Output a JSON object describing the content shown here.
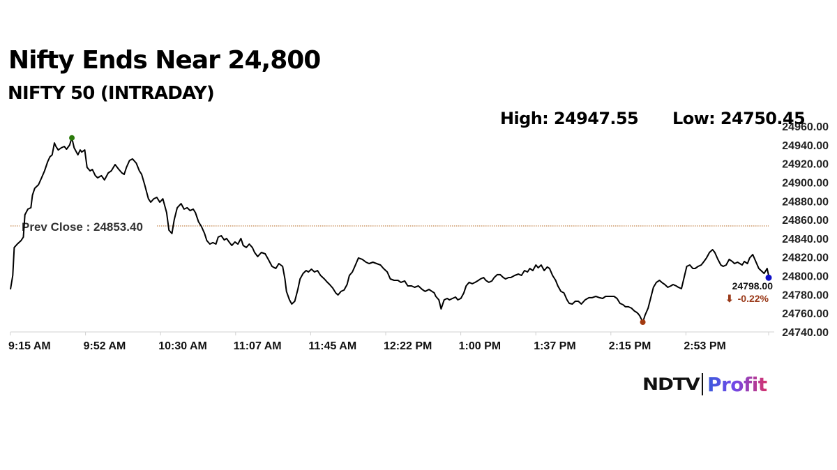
{
  "header": {
    "title": "Nifty Ends Near 24,800",
    "subtitle": "NIFTY 50 (INTRADAY)",
    "high_label": "High: 24947.55",
    "low_label": "Low: 24750.45"
  },
  "logo": {
    "brand": "NDTV",
    "product": "Profit"
  },
  "colors": {
    "line": "#000000",
    "prev_close_line": "#b5651d",
    "high_marker": "#2b7a0b",
    "low_marker": "#a33a10",
    "last_marker": "#1010c8",
    "change_text": "#9a3a1a"
  },
  "chart_data": {
    "type": "line",
    "title": "Nifty Ends Near 24,800",
    "subtitle": "NIFTY 50 (INTRADAY)",
    "xlabel": "",
    "ylabel": "",
    "ylim": [
      24740,
      24960
    ],
    "grid": false,
    "legend": null,
    "y_ticks": [
      "24960.00",
      "24940.00",
      "24920.00",
      "24900.00",
      "24880.00",
      "24860.00",
      "24840.00",
      "24820.00",
      "24800.00",
      "24780.00",
      "24760.00",
      "24740.00"
    ],
    "y_tick_values": [
      24960,
      24940,
      24920,
      24900,
      24880,
      24860,
      24840,
      24820,
      24800,
      24780,
      24760,
      24740
    ],
    "x_ticks": [
      "9:15 AM",
      "9:52 AM",
      "10:30 AM",
      "11:07 AM",
      "11:45 AM",
      "12:22 PM",
      "1:00 PM",
      "1:37 PM",
      "2:15 PM",
      "2:53 PM"
    ],
    "high": 24947.55,
    "low": 24750.45,
    "prev_close": 24853.4,
    "prev_close_label": "Prev Close : 24853.40",
    "last": 24798.0,
    "last_label": "24798.00",
    "change_pct": -0.22,
    "change_label": "-0.22%",
    "annotations": [
      "High: 24947.55",
      "Low: 24750.45",
      "Prev Close : 24853.40",
      "24798.00",
      "-0.22%"
    ],
    "series": [
      {
        "name": "NIFTY 50",
        "x_frac": [
          0,
          0.003,
          0.005,
          0.009,
          0.014,
          0.017,
          0.019,
          0.023,
          0.027,
          0.029,
          0.032,
          0.037,
          0.041,
          0.045,
          0.049,
          0.052,
          0.055,
          0.058,
          0.06,
          0.063,
          0.067,
          0.071,
          0.074,
          0.078,
          0.081,
          0.084,
          0.089,
          0.092,
          0.094,
          0.098,
          0.101,
          0.105,
          0.108,
          0.112,
          0.115,
          0.12,
          0.124,
          0.129,
          0.133,
          0.138,
          0.143,
          0.147,
          0.15,
          0.153,
          0.157,
          0.161,
          0.166,
          0.17,
          0.173,
          0.177,
          0.182,
          0.185,
          0.189,
          0.193,
          0.197,
          0.201,
          0.206,
          0.209,
          0.213,
          0.216,
          0.22,
          0.225,
          0.229,
          0.233,
          0.237,
          0.241,
          0.244,
          0.248,
          0.252,
          0.256,
          0.259,
          0.263,
          0.267,
          0.271,
          0.274,
          0.278,
          0.282,
          0.285,
          0.289,
          0.292,
          0.296,
          0.3,
          0.304,
          0.307,
          0.311,
          0.315,
          0.319,
          0.322,
          0.326,
          0.331,
          0.336,
          0.34,
          0.345,
          0.35,
          0.354,
          0.359,
          0.362,
          0.364,
          0.368,
          0.371,
          0.375,
          0.379,
          0.382,
          0.386,
          0.39,
          0.393,
          0.397,
          0.401,
          0.405,
          0.409,
          0.414,
          0.418,
          0.421,
          0.425,
          0.429,
          0.432,
          0.436,
          0.44,
          0.444,
          0.447,
          0.451,
          0.455,
          0.459,
          0.464,
          0.469,
          0.473,
          0.478,
          0.483,
          0.488,
          0.492,
          0.497,
          0.501,
          0.506,
          0.511,
          0.515,
          0.52,
          0.524,
          0.529,
          0.533,
          0.538,
          0.543,
          0.547,
          0.552,
          0.556,
          0.559,
          0.561,
          0.565,
          0.568,
          0.572,
          0.576,
          0.579,
          0.583,
          0.587,
          0.59,
          0.594,
          0.598,
          0.601,
          0.605,
          0.609,
          0.613,
          0.616,
          0.62,
          0.624,
          0.627,
          0.631,
          0.635,
          0.638,
          0.642,
          0.646,
          0.65,
          0.653,
          0.657,
          0.66,
          0.665,
          0.67,
          0.674,
          0.678,
          0.682,
          0.685,
          0.689,
          0.693,
          0.696,
          0.7,
          0.704,
          0.708,
          0.711,
          0.715,
          0.719,
          0.722,
          0.726,
          0.73,
          0.734,
          0.737,
          0.741,
          0.745,
          0.749,
          0.753,
          0.758,
          0.763,
          0.767,
          0.772,
          0.777,
          0.781,
          0.785,
          0.789,
          0.792,
          0.796,
          0.8,
          0.804,
          0.808,
          0.811,
          0.815,
          0.819,
          0.823,
          0.826,
          0.828,
          0.83,
          0.834,
          0.837,
          0.841,
          0.845,
          0.848,
          0.852,
          0.856,
          0.859,
          0.863,
          0.867,
          0.871,
          0.874,
          0.878,
          0.881,
          0.885,
          0.888,
          0.892,
          0.896,
          0.9,
          0.903,
          0.907,
          0.911,
          0.914,
          0.918,
          0.922,
          0.926,
          0.929,
          0.933,
          0.937,
          0.94,
          0.944,
          0.948,
          0.952,
          0.955,
          0.959,
          0.962,
          0.965,
          0.968,
          0.972,
          0.975,
          0.979,
          0.983,
          0.987,
          0.99,
          0.994,
          0.998,
          1.0
        ],
        "values": [
          24785.5,
          24800.4,
          24830.3,
          24834.0,
          24837.7,
          24841.4,
          24865.3,
          24871.3,
          24872.8,
          24886.2,
          24893.6,
          24897.4,
          24904.8,
          24912.3,
          24922.0,
          24927.2,
          24929.4,
          24942.1,
          24938.4,
          24934.6,
          24936.9,
          24938.4,
          24935.4,
          24939.9,
          24947.55,
          24936.9,
          24929.4,
          24934.6,
          24932.4,
          24934.6,
          24916.0,
          24912.3,
          24913.8,
          24907.1,
          24904.8,
          24907.1,
          24902.6,
          24910.0,
          24912.3,
          24919.0,
          24913.8,
          24910.0,
          24908.5,
          24916.0,
          24923.4,
          24925.0,
          24920.5,
          24912.3,
          24908.5,
          24897.4,
          24882.4,
          24878.7,
          24882.4,
          24883.9,
          24878.7,
          24882.4,
          24867.5,
          24848.9,
          24845.2,
          24860.1,
          24872.8,
          24877.2,
          24871.3,
          24872.8,
          24869.8,
          24871.3,
          24867.5,
          24857.8,
          24852.6,
          24845.2,
          24837.7,
          24834.0,
          24835.5,
          24834.0,
          24841.4,
          24842.9,
          24838.4,
          24839.9,
          24835.5,
          24832.5,
          24836.2,
          24834.0,
          24839.9,
          24832.5,
          24830.3,
          24834.0,
          24830.3,
          24825.0,
          24820.6,
          24825.0,
          24823.5,
          24817.6,
          24810.1,
          24807.9,
          24813.1,
          24810.1,
          24796.7,
          24783.3,
          24774.3,
          24769.8,
          24772.8,
          24785.5,
          24796.7,
          24802.6,
          24805.6,
          24804.1,
          24807.1,
          24804.1,
          24805.6,
          24800.4,
          24796.7,
          24793.0,
          24790.7,
          24787.0,
          24781.8,
          24779.5,
          24783.3,
          24784.8,
          24790.7,
          24800.4,
          24804.1,
          24811.6,
          24819.1,
          24817.6,
          24814.6,
          24813.1,
          24814.6,
          24813.1,
          24811.6,
          24807.9,
          24804.1,
          24796.7,
          24795.2,
          24795.2,
          24793.0,
          24794.5,
          24789.2,
          24789.2,
          24787.7,
          24789.2,
          24785.5,
          24783.3,
          24785.5,
          24783.3,
          24781.8,
          24778.0,
          24774.3,
          24764.6,
          24774.3,
          24775.8,
          24774.3,
          24775.8,
          24777.3,
          24774.3,
          24775.8,
          24781.8,
          24789.2,
          24793.0,
          24791.5,
          24793.0,
          24794.5,
          24796.7,
          24798.2,
          24795.2,
          24793.0,
          24794.5,
          24798.2,
          24801.2,
          24801.2,
          24798.2,
          24796.7,
          24798.2,
          24798.2,
          24800.4,
          24801.9,
          24800.4,
          24805.6,
          24804.1,
          24807.9,
          24805.6,
          24811.6,
          24808.6,
          24811.6,
          24805.6,
          24809.4,
          24807.9,
          24800.4,
          24795.2,
          24789.2,
          24783.3,
          24781.8,
          24774.3,
          24770.6,
          24769.8,
          24772.8,
          24772.8,
          24769.8,
          24774.3,
          24776.6,
          24776.6,
          24778.0,
          24776.6,
          24775.8,
          24778.0,
          24778.0,
          24778.0,
          24778.0,
          24775.8,
          24770.6,
          24769.1,
          24766.9,
          24766.9,
          24765.4,
          24762.4,
          24760.9,
          24759.4,
          24757.2,
          24750.45,
          24757.9,
          24765.4,
          24778.0,
          24787.7,
          24793.0,
          24795.2,
          24793.0,
          24790.7,
          24787.7,
          24789.2,
          24790.7,
          24789.2,
          24787.7,
          24786.3,
          24796.7,
          24810.1,
          24811.6,
          24807.9,
          24807.9,
          24810.1,
          24811.6,
          24814.6,
          24819.1,
          24825.0,
          24828.0,
          24825.0,
          24817.6,
          24811.6,
          24810.1,
          24811.6,
          24817.6,
          24815.4,
          24813.1,
          24814.6,
          24813.1,
          24811.6,
          24815.4,
          24813.1,
          24819.1,
          24822.8,
          24815.4,
          24807.9,
          24805.6,
          24802.6,
          24807.9,
          24800.4,
          24798.0
        ]
      }
    ]
  }
}
